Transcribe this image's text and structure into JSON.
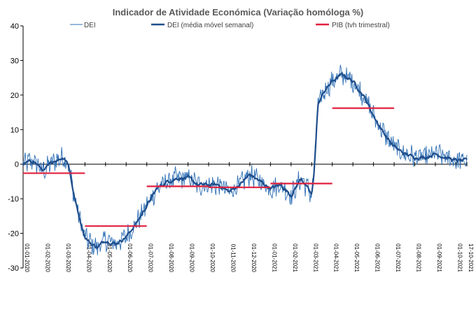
{
  "chart_data": {
    "type": "line",
    "title": "Indicador de Atividade Económica (Variação homóloga %)",
    "xlabel": "",
    "ylabel": "",
    "ylim": [
      -30,
      40
    ],
    "yticks": [
      -30,
      -20,
      -10,
      0,
      10,
      20,
      30,
      40
    ],
    "x_tick_labels": [
      "01-01-2020",
      "01-02-2020",
      "01-03-2020",
      "01-04-2020",
      "01-05-2020",
      "01-06-2020",
      "01-07-2020",
      "01-08-2020",
      "01-09-2020",
      "01-10-2020",
      "01-11-2020",
      "01-12-2020",
      "01-01-2021",
      "01-02-2021",
      "01-03-2021",
      "01-04-2021",
      "01-05-2021",
      "01-06-2021",
      "01-07-2021",
      "01-08-2021",
      "01-09-2021",
      "01-10-2021",
      "17-10-2021"
    ],
    "x_start": "01-01-2020",
    "x_end": "17-10-2021",
    "legend_position": "top",
    "series": [
      {
        "name": "DEI",
        "color": "#2E6FB5",
        "style": "thin line, daily",
        "anchors_month_index": [
          0,
          0.5,
          1,
          1.5,
          2,
          2.2,
          2.5,
          2.8,
          3,
          3.3,
          3.6,
          4,
          4.5,
          5,
          5.5,
          6,
          6.5,
          7,
          7.5,
          8,
          8.5,
          9,
          9.5,
          10,
          10.5,
          11,
          11.5,
          12,
          12.5,
          13,
          13.5,
          14,
          14.1,
          14.3,
          14.6,
          15,
          15.5,
          16,
          16.5,
          17,
          17.5,
          18,
          18.5,
          19,
          19.5,
          20,
          20.5,
          21,
          21.5
        ],
        "anchors_value": [
          0,
          1,
          -2,
          1,
          2,
          0,
          -10,
          -17,
          -21,
          -23,
          -24,
          -22,
          -23,
          -21,
          -17,
          -12,
          -7,
          -5,
          -4,
          -4,
          -6,
          -6,
          -6,
          -8,
          -6,
          -3,
          -5,
          -7,
          -6,
          -9,
          -4,
          -9,
          -4,
          17,
          21,
          24,
          26,
          24,
          20,
          14,
          9,
          5,
          3,
          2,
          2,
          3,
          2,
          1,
          1
        ],
        "amplitude": 2.8
      },
      {
        "name": "DEI (média móvel semanal)",
        "color": "#1F4E8C",
        "style": "thick line, weekly moving average",
        "anchors_month_index": [
          0,
          0.5,
          1,
          1.5,
          2,
          2.2,
          2.5,
          2.8,
          3,
          3.3,
          3.6,
          4,
          4.5,
          5,
          5.5,
          6,
          6.5,
          7,
          7.5,
          8,
          8.5,
          9,
          9.5,
          10,
          10.5,
          11,
          11.5,
          12,
          12.5,
          13,
          13.5,
          14,
          14.1,
          14.3,
          14.6,
          15,
          15.5,
          16,
          16.5,
          17,
          17.5,
          18,
          18.5,
          19,
          19.5,
          20,
          20.5,
          21,
          21.5
        ],
        "anchors_value": [
          0,
          1,
          -2,
          1,
          2,
          0,
          -10,
          -17,
          -21,
          -23,
          -24,
          -22,
          -23,
          -21,
          -17,
          -12,
          -7,
          -5,
          -4,
          -4,
          -6,
          -6,
          -6,
          -8,
          -6,
          -3,
          -5,
          -7,
          -6,
          -9,
          -4,
          -9,
          -4,
          17,
          21,
          24,
          26,
          24,
          20,
          14,
          9,
          5,
          3,
          2,
          2,
          3,
          2,
          1,
          1
        ],
        "amplitude": 1.2
      },
      {
        "name": "PIB (tvh trimestral)",
        "color": "#E0213F",
        "style": "step segments per quarter",
        "segments": [
          {
            "from_month": 0,
            "to_month": 3,
            "value": -2.6
          },
          {
            "from_month": 3,
            "to_month": 6,
            "value": -17.9
          },
          {
            "from_month": 6,
            "to_month": 9,
            "value": -6.4
          },
          {
            "from_month": 9,
            "to_month": 12,
            "value": -6.7
          },
          {
            "from_month": 12,
            "to_month": 15,
            "value": -5.6
          },
          {
            "from_month": 15,
            "to_month": 18,
            "value": 16.2
          }
        ]
      }
    ]
  }
}
